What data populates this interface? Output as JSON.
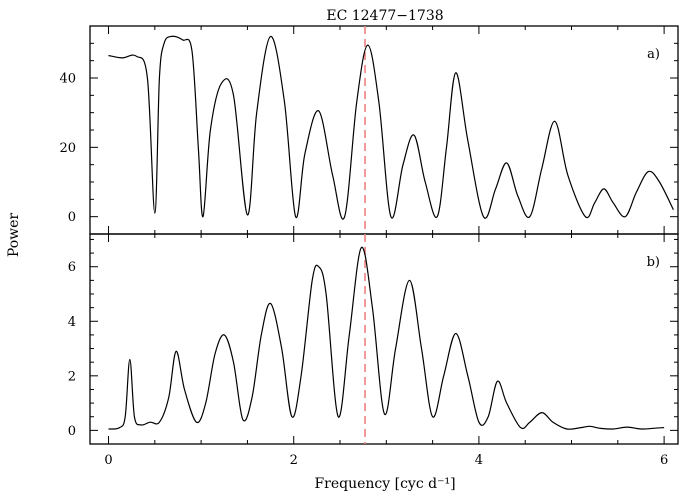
{
  "chart_data": {
    "title": "EC 12477−1738",
    "xlabel": "Frequency [cyc d⁻¹]",
    "ylabel": "Power",
    "x_range": [
      -0.2,
      6.15
    ],
    "x_ticks": [
      0,
      2,
      4,
      6
    ],
    "grid": false,
    "reference_line": {
      "x": 2.77,
      "color": "#f08080",
      "style": "dashed"
    },
    "panels": [
      {
        "label": "a)",
        "type": "line",
        "ylim": [
          -5,
          55
        ],
        "y_ticks": [
          0,
          20,
          40
        ],
        "points": [
          [
            0.0,
            46.5
          ],
          [
            0.15,
            45.8
          ],
          [
            0.3,
            46.3
          ],
          [
            0.42,
            40
          ],
          [
            0.5,
            1
          ],
          [
            0.55,
            40
          ],
          [
            0.6,
            50
          ],
          [
            0.68,
            52
          ],
          [
            0.8,
            51
          ],
          [
            0.9,
            48
          ],
          [
            0.97,
            20
          ],
          [
            1.02,
            0
          ],
          [
            1.1,
            25
          ],
          [
            1.22,
            38.5
          ],
          [
            1.35,
            35
          ],
          [
            1.5,
            0.5
          ],
          [
            1.6,
            30
          ],
          [
            1.75,
            52
          ],
          [
            1.9,
            33
          ],
          [
            2.02,
            0
          ],
          [
            2.12,
            18
          ],
          [
            2.27,
            30.5
          ],
          [
            2.42,
            12
          ],
          [
            2.55,
            0
          ],
          [
            2.68,
            33
          ],
          [
            2.8,
            49.5
          ],
          [
            2.92,
            33
          ],
          [
            3.05,
            0
          ],
          [
            3.18,
            15
          ],
          [
            3.3,
            23.5
          ],
          [
            3.42,
            10
          ],
          [
            3.55,
            0
          ],
          [
            3.65,
            20
          ],
          [
            3.75,
            41.5
          ],
          [
            3.88,
            22
          ],
          [
            4.05,
            0
          ],
          [
            4.18,
            8
          ],
          [
            4.3,
            15.5
          ],
          [
            4.42,
            6
          ],
          [
            4.55,
            0
          ],
          [
            4.68,
            14
          ],
          [
            4.82,
            27.5
          ],
          [
            4.96,
            12
          ],
          [
            5.15,
            0
          ],
          [
            5.25,
            4
          ],
          [
            5.35,
            8
          ],
          [
            5.45,
            4
          ],
          [
            5.58,
            0
          ],
          [
            5.7,
            7
          ],
          [
            5.83,
            13
          ],
          [
            5.95,
            10
          ],
          [
            6.1,
            2
          ]
        ]
      },
      {
        "label": "b)",
        "type": "line",
        "ylim": [
          -0.5,
          7.2
        ],
        "y_ticks": [
          0,
          2,
          4,
          6
        ],
        "points": [
          [
            0.0,
            0.05
          ],
          [
            0.12,
            0.1
          ],
          [
            0.18,
            0.5
          ],
          [
            0.23,
            2.6
          ],
          [
            0.28,
            0.5
          ],
          [
            0.35,
            0.2
          ],
          [
            0.45,
            0.3
          ],
          [
            0.55,
            0.3
          ],
          [
            0.65,
            1.2
          ],
          [
            0.73,
            2.9
          ],
          [
            0.82,
            1.5
          ],
          [
            0.95,
            0.3
          ],
          [
            1.05,
            1.0
          ],
          [
            1.15,
            2.8
          ],
          [
            1.25,
            3.5
          ],
          [
            1.35,
            2.5
          ],
          [
            1.45,
            0.4
          ],
          [
            1.55,
            1.2
          ],
          [
            1.65,
            3.5
          ],
          [
            1.75,
            4.65
          ],
          [
            1.87,
            3.0
          ],
          [
            1.98,
            0.5
          ],
          [
            2.08,
            2.0
          ],
          [
            2.2,
            5.5
          ],
          [
            2.27,
            6.0
          ],
          [
            2.35,
            5.0
          ],
          [
            2.48,
            0.5
          ],
          [
            2.6,
            3.5
          ],
          [
            2.73,
            6.7
          ],
          [
            2.85,
            4.5
          ],
          [
            2.98,
            0.6
          ],
          [
            3.1,
            3.0
          ],
          [
            3.25,
            5.5
          ],
          [
            3.38,
            3.0
          ],
          [
            3.5,
            0.5
          ],
          [
            3.62,
            2.0
          ],
          [
            3.75,
            3.55
          ],
          [
            3.88,
            2.0
          ],
          [
            4.0,
            0.3
          ],
          [
            4.1,
            0.5
          ],
          [
            4.2,
            1.8
          ],
          [
            4.3,
            1.0
          ],
          [
            4.45,
            0.1
          ],
          [
            4.55,
            0.3
          ],
          [
            4.68,
            0.65
          ],
          [
            4.8,
            0.3
          ],
          [
            4.95,
            0.05
          ],
          [
            5.1,
            0.1
          ],
          [
            5.2,
            0.15
          ],
          [
            5.3,
            0.08
          ],
          [
            5.45,
            0.05
          ],
          [
            5.6,
            0.12
          ],
          [
            5.75,
            0.05
          ],
          [
            5.9,
            0.08
          ],
          [
            6.0,
            0.1
          ]
        ]
      }
    ]
  }
}
